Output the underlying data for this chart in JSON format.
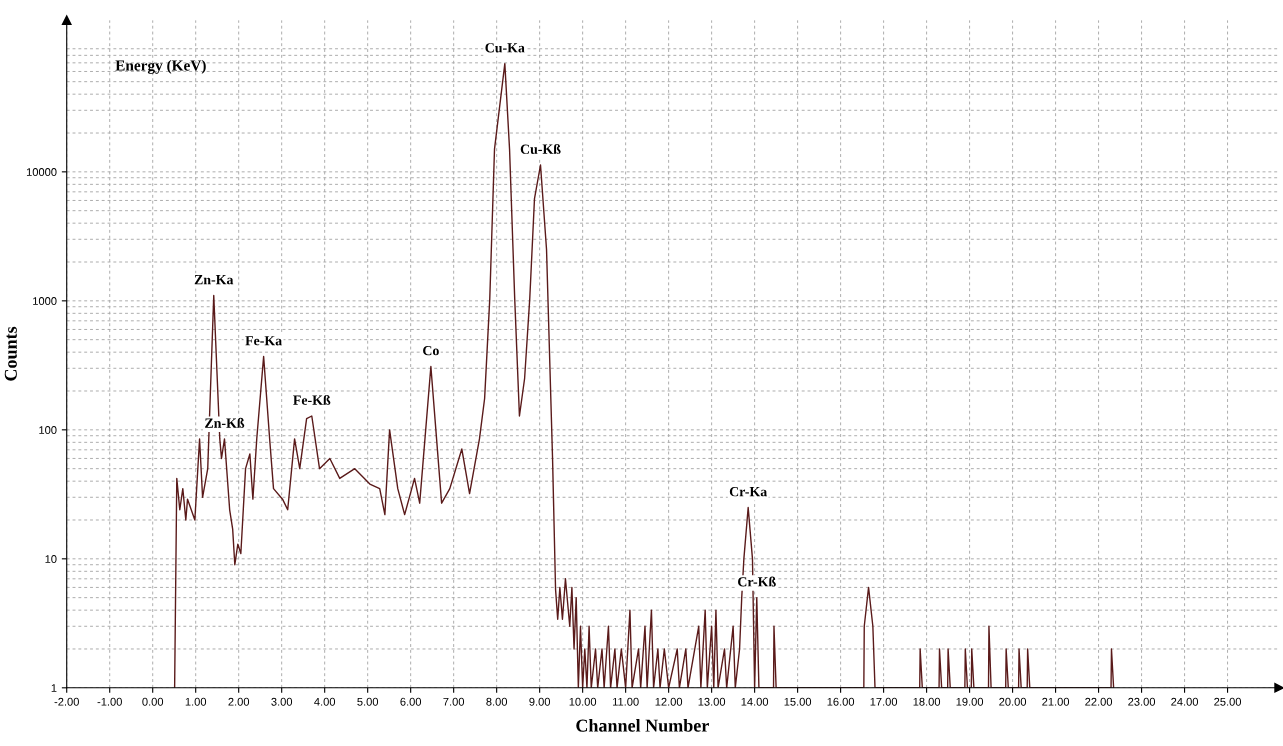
{
  "chart_data": {
    "type": "line",
    "xlabel": "Channel Number",
    "ylabel": "Counts",
    "log": "y",
    "grid": true,
    "marker": "none",
    "line_style": "solid",
    "xlim": [
      -2,
      26.2
    ],
    "ylim": [
      1,
      150000
    ],
    "xticks": [
      {
        "value": -2,
        "label": "-2.00"
      },
      {
        "value": -1,
        "label": "-1.00"
      },
      {
        "value": 0,
        "label": "0.00"
      },
      {
        "value": 1,
        "label": "1.00"
      },
      {
        "value": 2,
        "label": "2.00"
      },
      {
        "value": 3,
        "label": "3.00"
      },
      {
        "value": 4,
        "label": "4.00"
      },
      {
        "value": 5,
        "label": "5.00"
      },
      {
        "value": 6,
        "label": "6.00"
      },
      {
        "value": 7,
        "label": "7.00"
      },
      {
        "value": 8,
        "label": "8.00"
      },
      {
        "value": 9,
        "label": "9.00"
      },
      {
        "value": 10,
        "label": "10.00"
      },
      {
        "value": 11,
        "label": "11.00"
      },
      {
        "value": 12,
        "label": "12.00"
      },
      {
        "value": 13,
        "label": "13.00"
      },
      {
        "value": 14,
        "label": "14.00"
      },
      {
        "value": 15,
        "label": "15.00"
      },
      {
        "value": 16,
        "label": "16.00"
      },
      {
        "value": 17,
        "label": "17.00"
      },
      {
        "value": 18,
        "label": "18.00"
      },
      {
        "value": 19,
        "label": "19.00"
      },
      {
        "value": 20,
        "label": "20.00"
      },
      {
        "value": 21,
        "label": "21.00"
      },
      {
        "value": 22,
        "label": "22.00"
      },
      {
        "value": 23,
        "label": "23.00"
      },
      {
        "value": 24,
        "label": "24.00"
      },
      {
        "value": 25,
        "label": "25.00"
      }
    ],
    "yticks": [
      1,
      10,
      100,
      1000,
      10000
    ],
    "series": [
      {
        "color": "#5a1a1a",
        "x": [
          0.51,
          0.56,
          0.63,
          0.7,
          0.77,
          0.81,
          0.98,
          1.09,
          1.16,
          1.28,
          1.42,
          1.56,
          1.6,
          1.67,
          1.79,
          1.86,
          1.91,
          1.98,
          2.05,
          2.16,
          2.26,
          2.33,
          2.42,
          2.58,
          2.72,
          2.81,
          3.02,
          3.14,
          3.3,
          3.42,
          3.58,
          3.7,
          3.88,
          4.12,
          4.35,
          4.7,
          5.05,
          5.28,
          5.4,
          5.51,
          5.7,
          5.86,
          6.09,
          6.21,
          6.47,
          6.72,
          6.91,
          7.19,
          7.37,
          7.6,
          7.72,
          7.84,
          7.95,
          8.19,
          8.3,
          8.42,
          8.53,
          8.65,
          8.77,
          8.88,
          9.02,
          9.16,
          9.3,
          9.37,
          9.42,
          9.47,
          9.53,
          9.6,
          9.7,
          9.75,
          9.8,
          9.85,
          9.9,
          9.95,
          10.0,
          10.05,
          10.1,
          10.15,
          10.2,
          10.3,
          10.35,
          10.45,
          10.5,
          10.6,
          10.65,
          10.75,
          10.8,
          10.9,
          11.0,
          11.1,
          11.15,
          11.3,
          11.35,
          11.45,
          11.5,
          11.6,
          11.65,
          11.75,
          11.8,
          11.9,
          12.0,
          12.2,
          12.25,
          12.4,
          12.45,
          12.7,
          12.75,
          12.85,
          12.9,
          13.0,
          13.05,
          13.1,
          13.15,
          13.3,
          13.35,
          13.5,
          13.55,
          13.65,
          13.7,
          13.75,
          13.85,
          13.95,
          14.0,
          14.05,
          14.1,
          14.44,
          14.45,
          14.5,
          16.54,
          16.55,
          16.65,
          16.75,
          16.8,
          17.84,
          17.85,
          17.9,
          18.29,
          18.3,
          18.35,
          18.49,
          18.5,
          18.55,
          18.89,
          18.9,
          18.95,
          19.04,
          19.05,
          19.1,
          19.44,
          19.45,
          19.5,
          19.84,
          19.85,
          19.9,
          20.14,
          20.15,
          20.2,
          20.34,
          20.35,
          20.4,
          22.29,
          22.3,
          22.35
        ],
        "values": [
          1,
          42,
          24,
          35,
          20,
          29,
          20,
          85,
          30,
          50,
          1100,
          85,
          60,
          85,
          24,
          17,
          9,
          13,
          11,
          50,
          65,
          29,
          85,
          370,
          85,
          35,
          29,
          24,
          85,
          50,
          122,
          128,
          50,
          60,
          42,
          50,
          38,
          35,
          22,
          100,
          35,
          22,
          42,
          27,
          310,
          27,
          35,
          71,
          32,
          85,
          175,
          1040,
          15000,
          69000,
          15000,
          1040,
          128,
          250,
          1040,
          6200,
          11300,
          2500,
          60,
          5.8,
          3.4,
          6,
          3.4,
          7,
          3,
          6,
          2,
          5,
          1,
          3,
          1,
          2,
          1,
          3,
          1,
          2,
          1,
          2,
          1,
          3,
          1,
          2,
          1,
          2,
          1,
          4,
          1,
          2,
          1,
          3,
          1,
          4,
          1,
          2,
          1,
          2,
          1,
          2,
          1,
          2,
          1,
          3,
          1,
          4,
          1,
          3,
          1,
          4,
          1,
          2,
          1,
          3,
          1,
          2,
          5,
          10,
          25,
          10,
          1,
          5,
          1,
          1,
          3,
          1,
          1,
          3,
          6,
          3,
          1,
          1,
          2,
          1,
          1,
          2,
          1,
          1,
          2,
          1,
          1,
          2,
          1,
          1,
          2,
          1,
          1,
          3,
          1,
          1,
          2,
          1,
          1,
          2,
          1,
          1,
          2,
          1,
          1,
          2,
          1
        ]
      }
    ],
    "annotations": [
      "Energy (KeV)",
      {
        "text": "Zn-Ka",
        "x": 1.42,
        "y": 1100
      },
      {
        "text": "Zn-Kß",
        "x": 1.67,
        "y": 85
      },
      {
        "text": "Fe-Ka",
        "x": 2.58,
        "y": 370
      },
      {
        "text": "Fe-Kß",
        "x": 3.7,
        "y": 128
      },
      {
        "text": "Co",
        "x": 6.47,
        "y": 310
      },
      {
        "text": "Cu-Ka",
        "x": 8.19,
        "y": 69000
      },
      {
        "text": "Cu-Kß",
        "x": 9.02,
        "y": 11300
      },
      {
        "text": "Cr-Ka",
        "x": 13.85,
        "y": 25
      },
      {
        "text": "Cr-Kß",
        "x": 14.05,
        "y": 5
      }
    ]
  }
}
